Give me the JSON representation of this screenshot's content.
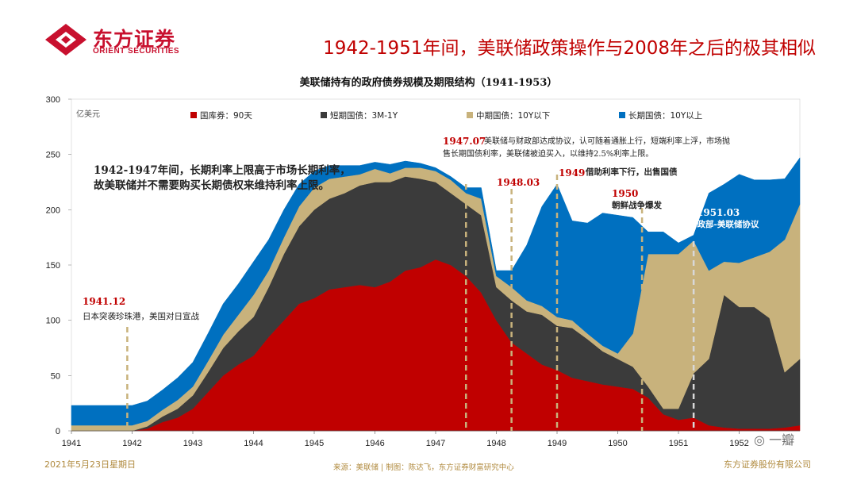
{
  "header": {
    "logo_cn": "东方证券",
    "logo_en": "ORIENT SECURITIES",
    "headline": "1942-1951年间，美联储政策操作与2008年之后的极其相似"
  },
  "chart_data": {
    "type": "area",
    "stacked": true,
    "title": "美联储持有的政府债券规模及期限结构（1941-1953）",
    "ylabel": "亿美元",
    "ylim": [
      0,
      300
    ],
    "yticks": [
      "0",
      "50",
      "100",
      "150",
      "200",
      "250",
      "300"
    ],
    "xlim": [
      1941,
      1953
    ],
    "xticks": [
      "1941",
      "1942",
      "1943",
      "1944",
      "1945",
      "1946",
      "1947",
      "1948",
      "1949",
      "1950",
      "1951",
      "1952"
    ],
    "legend_position": "top",
    "x": [
      1941.0,
      1941.25,
      1941.5,
      1941.75,
      1942.0,
      1942.25,
      1942.5,
      1942.75,
      1943.0,
      1943.25,
      1943.5,
      1943.75,
      1944.0,
      1944.25,
      1944.5,
      1944.75,
      1945.0,
      1945.25,
      1945.5,
      1945.75,
      1946.0,
      1946.25,
      1946.5,
      1946.75,
      1947.0,
      1947.25,
      1947.5,
      1947.75,
      1948.0,
      1948.25,
      1948.5,
      1948.75,
      1949.0,
      1949.25,
      1949.5,
      1949.75,
      1950.0,
      1950.25,
      1950.5,
      1950.75,
      1951.0,
      1951.25,
      1951.5,
      1951.75,
      1952.0,
      1952.25,
      1952.5,
      1952.75,
      1953.0
    ],
    "series": [
      {
        "name": "国库券：90天",
        "color": "#c00000",
        "values": [
          0,
          0,
          0,
          0,
          0,
          2,
          8,
          12,
          20,
          35,
          50,
          60,
          68,
          85,
          100,
          115,
          120,
          128,
          130,
          132,
          130,
          135,
          145,
          148,
          155,
          150,
          140,
          125,
          100,
          80,
          70,
          60,
          55,
          48,
          45,
          42,
          40,
          38,
          30,
          15,
          10,
          12,
          5,
          3,
          2,
          2,
          2,
          3,
          5
        ]
      },
      {
        "name": "短期国债：3M-1Y",
        "color": "#3b3b3b",
        "values": [
          0,
          0,
          0,
          0,
          0,
          2,
          5,
          8,
          12,
          18,
          25,
          30,
          35,
          45,
          60,
          70,
          80,
          82,
          85,
          90,
          95,
          90,
          85,
          80,
          70,
          65,
          65,
          70,
          30,
          38,
          38,
          45,
          40,
          45,
          38,
          30,
          25,
          20,
          10,
          5,
          10,
          40,
          60,
          120,
          110,
          110,
          100,
          50,
          60
        ]
      },
      {
        "name": "中期国债：10Y以下",
        "color": "#c8b27c",
        "values": [
          5,
          5,
          5,
          5,
          5,
          5,
          6,
          8,
          8,
          10,
          12,
          15,
          20,
          15,
          15,
          18,
          20,
          18,
          15,
          10,
          12,
          8,
          8,
          10,
          10,
          12,
          10,
          15,
          10,
          12,
          10,
          8,
          8,
          7,
          5,
          5,
          5,
          30,
          120,
          140,
          140,
          120,
          80,
          30,
          40,
          45,
          60,
          120,
          140
        ]
      },
      {
        "name": "长期国债：10Y以上",
        "color": "#0070c0",
        "values": [
          18,
          18,
          18,
          18,
          18,
          18,
          18,
          20,
          22,
          25,
          28,
          28,
          30,
          28,
          25,
          20,
          15,
          12,
          10,
          8,
          6,
          8,
          6,
          4,
          3,
          3,
          5,
          10,
          5,
          15,
          50,
          90,
          120,
          90,
          100,
          120,
          125,
          105,
          20,
          20,
          10,
          5,
          70,
          70,
          80,
          70,
          65,
          55,
          42
        ]
      }
    ],
    "events": [
      {
        "date": "1941.12",
        "x": 1941.92,
        "text": "日本突袭珍珠港，美国对日宣战"
      },
      {
        "date": "1947.07",
        "x": 1947.5,
        "text": "美联储与财政部达成协议，认可随着通胀上行，短端利率上浮，市场抛售长期国债利率，美联储被迫买入，以维持2.5%利率上限。"
      },
      {
        "date": "1948.03",
        "x": 1948.25,
        "text": ""
      },
      {
        "date": "1949",
        "x": 1949.0,
        "text": "借助利率下行，出售国债"
      },
      {
        "date": "1950",
        "x": 1950.4,
        "text": "朝鲜战争爆发"
      },
      {
        "date": "1951.03",
        "x": 1951.25,
        "text": "财政部-美联储协议"
      }
    ],
    "annotation": "1942-1947年间，长期利率上限高于市场长期利率，故美联储并不需要购买长期债权来维持利率上限。"
  },
  "footer": {
    "date": "2021年5月23日星期日",
    "source": "来源：美联储 | 制图：陈达飞，东方证券财富研究中心",
    "company": "东方证券股份有限公司",
    "watermark": "一瓣"
  },
  "colors": {
    "brand_red": "#c8102e",
    "event_red": "#c00000",
    "event_blue": "#1f4e9c",
    "dash": "#c8b27c"
  }
}
